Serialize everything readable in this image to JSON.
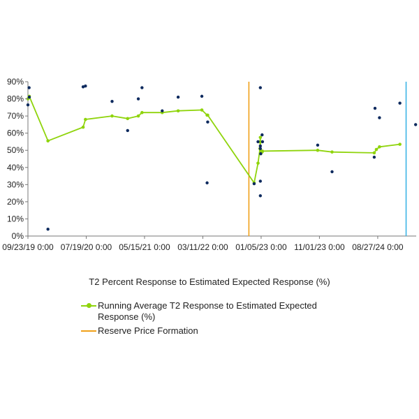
{
  "chart_data": {
    "type": "scatter",
    "title": "T2 Percent Response to Estimated Expected Response (%)",
    "x_axis": {
      "type": "date",
      "range": [
        "2019-09-23",
        "2025-03-13"
      ],
      "tick_labels": [
        "09/23/19 0:00",
        "07/19/20 0:00",
        "05/15/21 0:00",
        "03/11/22 0:00",
        "01/05/23 0:00",
        "11/01/23 0:00",
        "08/27/24 0:00"
      ],
      "tick_dates": [
        "2019-09-23",
        "2020-07-19",
        "2021-05-15",
        "2022-03-11",
        "2023-01-05",
        "2023-11-01",
        "2024-08-27"
      ]
    },
    "y_axis": {
      "range": [
        0,
        90
      ],
      "ticks": [
        0,
        10,
        20,
        30,
        40,
        50,
        60,
        70,
        80,
        90
      ],
      "tick_labels": [
        "0%",
        "10%",
        "20%",
        "30%",
        "40%",
        "50%",
        "60%",
        "70%",
        "80%",
        "90%"
      ]
    },
    "grid": false,
    "legend_position": "bottom",
    "series": [
      {
        "name": "T2 Percent Response to Estimated Expected Response (%)",
        "kind": "scatter",
        "color": "#0d2a5e",
        "points": [
          {
            "x": "2019-09-23",
            "y": 76.5
          },
          {
            "x": "2019-09-29",
            "y": 86.5
          },
          {
            "x": "2019-09-30",
            "y": 81
          },
          {
            "x": "2020-01-04",
            "y": 4
          },
          {
            "x": "2020-07-03",
            "y": 87
          },
          {
            "x": "2020-07-15",
            "y": 87.5
          },
          {
            "x": "2020-11-29",
            "y": 78.5
          },
          {
            "x": "2021-02-17",
            "y": 61.5
          },
          {
            "x": "2021-04-13",
            "y": 80
          },
          {
            "x": "2021-05-02",
            "y": 86.5
          },
          {
            "x": "2021-08-14",
            "y": 73
          },
          {
            "x": "2021-11-04",
            "y": 81
          },
          {
            "x": "2022-03-06",
            "y": 81.5
          },
          {
            "x": "2022-04-02",
            "y": 31
          },
          {
            "x": "2022-04-05",
            "y": 66.5
          },
          {
            "x": "2022-11-30",
            "y": 30.5
          },
          {
            "x": "2022-12-20",
            "y": 55
          },
          {
            "x": "2023-01-01",
            "y": 86.5
          },
          {
            "x": "2023-01-01",
            "y": 32
          },
          {
            "x": "2023-01-01",
            "y": 23.5
          },
          {
            "x": "2023-01-01",
            "y": 51
          },
          {
            "x": "2023-01-01",
            "y": 52.5
          },
          {
            "x": "2023-01-03",
            "y": 48
          },
          {
            "x": "2023-01-10",
            "y": 59
          },
          {
            "x": "2023-01-12",
            "y": 55
          },
          {
            "x": "2023-10-23",
            "y": 53
          },
          {
            "x": "2024-01-05",
            "y": 37.5
          },
          {
            "x": "2024-08-09",
            "y": 46
          },
          {
            "x": "2024-08-13",
            "y": 74.5
          },
          {
            "x": "2024-09-05",
            "y": 69
          },
          {
            "x": "2024-12-19",
            "y": 77.5
          },
          {
            "x": "2025-03-10",
            "y": 65
          }
        ]
      },
      {
        "name": "Running Average T2 Response to Estimated Expected Response (%)",
        "kind": "line",
        "color": "#8fd40c",
        "points": [
          {
            "x": "2019-09-23",
            "y": 80
          },
          {
            "x": "2019-09-30",
            "y": 81.5
          },
          {
            "x": "2020-01-04",
            "y": 55.5
          },
          {
            "x": "2020-07-03",
            "y": 63.5
          },
          {
            "x": "2020-07-15",
            "y": 68
          },
          {
            "x": "2020-11-29",
            "y": 70
          },
          {
            "x": "2021-02-17",
            "y": 68.5
          },
          {
            "x": "2021-04-13",
            "y": 70
          },
          {
            "x": "2021-05-02",
            "y": 72
          },
          {
            "x": "2021-08-14",
            "y": 72
          },
          {
            "x": "2021-11-04",
            "y": 73
          },
          {
            "x": "2022-03-06",
            "y": 73.5
          },
          {
            "x": "2022-04-02",
            "y": 70.5
          },
          {
            "x": "2022-04-05",
            "y": 70.5
          },
          {
            "x": "2022-11-30",
            "y": 31
          },
          {
            "x": "2022-12-20",
            "y": 42.5
          },
          {
            "x": "2022-12-30",
            "y": 51
          },
          {
            "x": "2022-12-31",
            "y": 55
          },
          {
            "x": "2023-01-01",
            "y": 57.5
          },
          {
            "x": "2023-01-02",
            "y": 50
          },
          {
            "x": "2023-01-03",
            "y": 48
          },
          {
            "x": "2023-01-10",
            "y": 49
          },
          {
            "x": "2023-01-12",
            "y": 49.5
          },
          {
            "x": "2023-10-23",
            "y": 50
          },
          {
            "x": "2024-01-05",
            "y": 49
          },
          {
            "x": "2024-08-09",
            "y": 48.5
          },
          {
            "x": "2024-08-20",
            "y": 50.5
          },
          {
            "x": "2024-09-05",
            "y": 52
          },
          {
            "x": "2024-12-19",
            "y": 53.5
          }
        ]
      }
    ],
    "reference_lines": [
      {
        "name": "Reserve Price Formation",
        "x": "2022-11-03",
        "color": "#f0a018"
      },
      {
        "name": "",
        "x": "2025-01-20",
        "color": "#3cb4e6"
      }
    ]
  },
  "legend": {
    "items": [
      {
        "label": "Running Average T2 Response to Estimated Expected Response (%)",
        "color": "#8fd40c",
        "marker": true
      },
      {
        "label": "Reserve Price Formation",
        "color": "#f0a018",
        "marker": false
      }
    ]
  }
}
